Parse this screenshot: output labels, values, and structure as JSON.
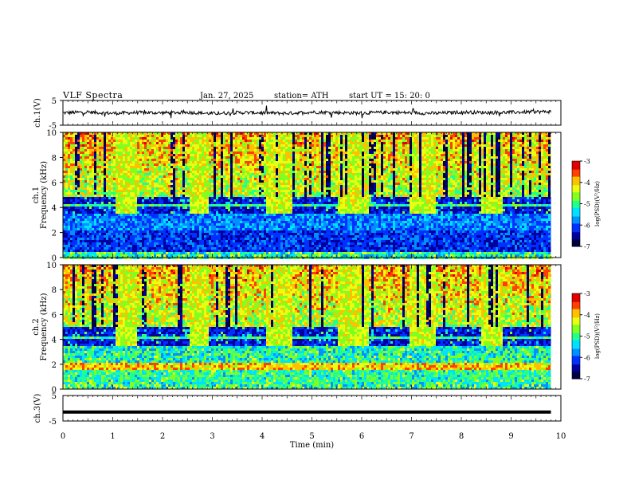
{
  "header": {
    "title": "VLF  Spectra",
    "date": "Jan. 27, 2025",
    "station": "station= ATH",
    "start": "start  UT  =    15: 20: 0"
  },
  "colors": {
    "spectrogram_scale": [
      "#000040",
      "#0000a0",
      "#0030ff",
      "#0090ff",
      "#00e0ff",
      "#20ff90",
      "#80ff20",
      "#e8ff10",
      "#ffc000",
      "#ff4000",
      "#e00000",
      "#ffffff"
    ],
    "trace": "#000000"
  },
  "chart_data": [
    {
      "type": "line",
      "name_label": "ch.1(V)",
      "ylabel": "ch.1(V)",
      "ylim": [
        -5,
        5
      ],
      "yticks": [
        "5",
        "-5"
      ],
      "xlim": [
        0,
        9.8
      ],
      "series": [
        {
          "x": [
            0,
            0.5,
            1,
            1.5,
            2,
            2.5,
            3,
            3.5,
            4,
            4.5,
            5,
            5.5,
            6,
            6.5,
            7,
            7.5,
            8,
            8.5,
            9,
            9.5,
            9.8
          ],
          "values": [
            0,
            0.3,
            -0.2,
            0.1,
            0,
            0.2,
            -0.3,
            0.1,
            0,
            -0.2,
            0.3,
            0.1,
            -0.1,
            0.2,
            0,
            -0.2,
            0.3,
            0.1,
            0.2,
            0.4,
            0.5
          ]
        }
      ]
    },
    {
      "type": "heatmap",
      "name_label": "ch.1",
      "ylabel": "Frequency  (kHz)",
      "ylim": [
        0,
        10
      ],
      "yticks": [
        "0",
        "2",
        "4",
        "6",
        "8",
        "10"
      ],
      "xlim": [
        0,
        9.8
      ],
      "quiet_band_intervals_min": [
        [
          1.05,
          1.45
        ],
        [
          2.5,
          2.9
        ],
        [
          4.05,
          4.6
        ],
        [
          5.5,
          6.1
        ],
        [
          6.95,
          7.45
        ],
        [
          8.4,
          8.8
        ]
      ],
      "colorbar": {
        "label": "log(PSD)(V²/Hz)",
        "range": [
          -7,
          -3
        ],
        "ticks": [
          "-3",
          "-4",
          "-5",
          "-6",
          "-7"
        ]
      }
    },
    {
      "type": "heatmap",
      "name_label": "ch.2",
      "ylabel": "Frequency  (kHz)",
      "ylim": [
        0,
        10
      ],
      "yticks": [
        "0",
        "2",
        "4",
        "6",
        "8",
        "10"
      ],
      "xlim": [
        0,
        9.8
      ],
      "quiet_band_intervals_min": [
        [
          1.05,
          1.45
        ],
        [
          2.5,
          2.9
        ],
        [
          4.05,
          4.6
        ],
        [
          5.5,
          6.1
        ],
        [
          6.95,
          7.45
        ],
        [
          8.4,
          8.8
        ]
      ],
      "colorbar": {
        "label": "log(PSD)(V²/Hz)",
        "range": [
          -7,
          -3
        ],
        "ticks": [
          "-3",
          "-4",
          "-5",
          "-6",
          "-7"
        ]
      }
    },
    {
      "type": "line",
      "name_label": "ch.3(V)",
      "ylabel": "ch.3(V)",
      "ylim": [
        -5,
        5
      ],
      "yticks": [
        "5",
        "-5"
      ],
      "xlim": [
        0,
        9.8
      ],
      "series": [
        {
          "x": [
            0,
            9.8
          ],
          "values": [
            -1.5,
            -1.5
          ]
        }
      ],
      "xlabel": "Time  (min)",
      "xticks": [
        "0",
        "1",
        "2",
        "3",
        "4",
        "5",
        "6",
        "7",
        "8",
        "9",
        "10"
      ],
      "xrange": [
        0,
        10
      ]
    }
  ]
}
